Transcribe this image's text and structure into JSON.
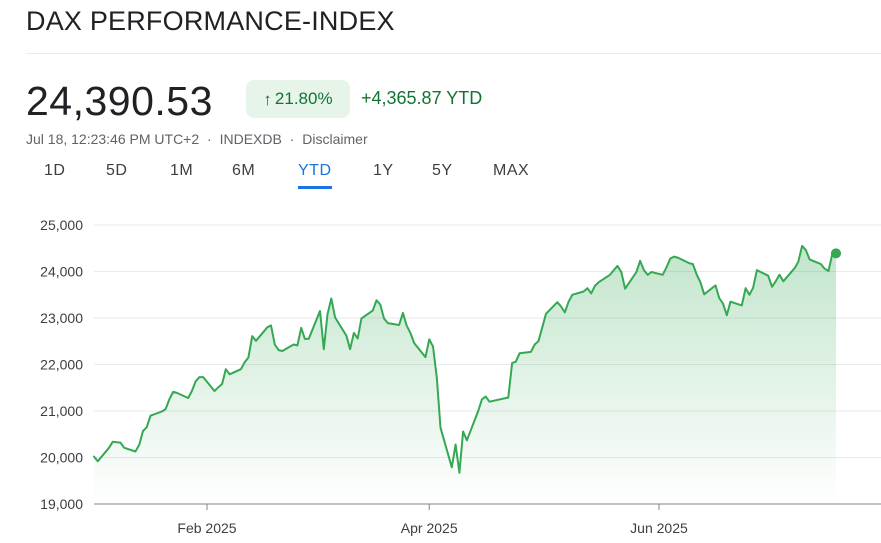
{
  "header": {
    "title": "DAX PERFORMANCE-INDEX",
    "price": "24,390.53",
    "change_pct": "21.80%",
    "change_abs": "+4,365.87 YTD",
    "timestamp": "Jul 18, 12:23:46 PM UTC+2",
    "exchange": "INDEXDB",
    "disclaimer": "Disclaimer",
    "separator": "·"
  },
  "tabs": [
    {
      "label": "1D",
      "active": false
    },
    {
      "label": "5D",
      "active": false
    },
    {
      "label": "1M",
      "active": false
    },
    {
      "label": "6M",
      "active": false
    },
    {
      "label": "YTD",
      "active": true
    },
    {
      "label": "1Y",
      "active": false
    },
    {
      "label": "5Y",
      "active": false
    },
    {
      "label": "MAX",
      "active": false
    }
  ],
  "colors": {
    "line": "#34a853",
    "positive_text": "#137333",
    "positive_bg": "#e6f4ea",
    "active_tab": "#1a73e8"
  },
  "chart_data": {
    "type": "area",
    "title": "",
    "xlabel": "",
    "ylabel": "",
    "ylim": [
      19000,
      25000
    ],
    "yticks": [
      19000,
      20000,
      21000,
      22000,
      23000,
      24000,
      25000
    ],
    "ytick_labels": [
      "19,000",
      "20,000",
      "21,000",
      "22,000",
      "23,000",
      "24,000",
      "25,000"
    ],
    "xtick_labels": [
      "Feb 2025",
      "Apr 2025",
      "Jun 2025"
    ],
    "xtick_dates": [
      "2025-02-01",
      "2025-04-01",
      "2025-06-01"
    ],
    "xlim": [
      "2025-01-02",
      "2025-07-18"
    ],
    "grid": true,
    "series": [
      {
        "points": [
          [
            "2025-01-02",
            20020
          ],
          [
            "2025-01-03",
            19920
          ],
          [
            "2025-01-06",
            20210
          ],
          [
            "2025-01-07",
            20340
          ],
          [
            "2025-01-08",
            20330
          ],
          [
            "2025-01-09",
            20320
          ],
          [
            "2025-01-10",
            20210
          ],
          [
            "2025-01-13",
            20130
          ],
          [
            "2025-01-14",
            20270
          ],
          [
            "2025-01-15",
            20570
          ],
          [
            "2025-01-16",
            20650
          ],
          [
            "2025-01-17",
            20900
          ],
          [
            "2025-01-20",
            20990
          ],
          [
            "2025-01-21",
            21040
          ],
          [
            "2025-01-22",
            21250
          ],
          [
            "2025-01-23",
            21410
          ],
          [
            "2025-01-24",
            21390
          ],
          [
            "2025-01-27",
            21280
          ],
          [
            "2025-01-28",
            21430
          ],
          [
            "2025-01-29",
            21640
          ],
          [
            "2025-01-30",
            21730
          ],
          [
            "2025-01-31",
            21730
          ],
          [
            "2025-02-03",
            21430
          ],
          [
            "2025-02-04",
            21510
          ],
          [
            "2025-02-05",
            21580
          ],
          [
            "2025-02-06",
            21900
          ],
          [
            "2025-02-07",
            21790
          ],
          [
            "2025-02-10",
            21900
          ],
          [
            "2025-02-11",
            22050
          ],
          [
            "2025-02-12",
            22150
          ],
          [
            "2025-02-13",
            22610
          ],
          [
            "2025-02-14",
            22510
          ],
          [
            "2025-02-17",
            22800
          ],
          [
            "2025-02-18",
            22840
          ],
          [
            "2025-02-19",
            22430
          ],
          [
            "2025-02-20",
            22310
          ],
          [
            "2025-02-21",
            22290
          ],
          [
            "2025-02-24",
            22430
          ],
          [
            "2025-02-25",
            22410
          ],
          [
            "2025-02-26",
            22790
          ],
          [
            "2025-02-27",
            22550
          ],
          [
            "2025-02-28",
            22550
          ],
          [
            "2025-03-03",
            23150
          ],
          [
            "2025-03-04",
            22330
          ],
          [
            "2025-03-05",
            23080
          ],
          [
            "2025-03-06",
            23420
          ],
          [
            "2025-03-07",
            23010
          ],
          [
            "2025-03-10",
            22620
          ],
          [
            "2025-03-11",
            22330
          ],
          [
            "2025-03-12",
            22680
          ],
          [
            "2025-03-13",
            22560
          ],
          [
            "2025-03-14",
            22990
          ],
          [
            "2025-03-17",
            23160
          ],
          [
            "2025-03-18",
            23380
          ],
          [
            "2025-03-19",
            23290
          ],
          [
            "2025-03-20",
            22990
          ],
          [
            "2025-03-21",
            22890
          ],
          [
            "2025-03-24",
            22850
          ],
          [
            "2025-03-25",
            23110
          ],
          [
            "2025-03-26",
            22840
          ],
          [
            "2025-03-27",
            22680
          ],
          [
            "2025-03-28",
            22460
          ],
          [
            "2025-03-31",
            22160
          ],
          [
            "2025-04-01",
            22540
          ],
          [
            "2025-04-02",
            22390
          ],
          [
            "2025-04-03",
            21720
          ],
          [
            "2025-04-04",
            20640
          ],
          [
            "2025-04-07",
            19790
          ],
          [
            "2025-04-08",
            20280
          ],
          [
            "2025-04-09",
            19670
          ],
          [
            "2025-04-10",
            20560
          ],
          [
            "2025-04-11",
            20370
          ],
          [
            "2025-04-14",
            21000
          ],
          [
            "2025-04-15",
            21250
          ],
          [
            "2025-04-16",
            21310
          ],
          [
            "2025-04-17",
            21200
          ],
          [
            "2025-04-22",
            21290
          ],
          [
            "2025-04-23",
            22030
          ],
          [
            "2025-04-24",
            22060
          ],
          [
            "2025-04-25",
            22240
          ],
          [
            "2025-04-28",
            22270
          ],
          [
            "2025-04-29",
            22430
          ],
          [
            "2025-04-30",
            22500
          ],
          [
            "2025-05-02",
            23090
          ],
          [
            "2025-05-05",
            23340
          ],
          [
            "2025-05-06",
            23250
          ],
          [
            "2025-05-07",
            23120
          ],
          [
            "2025-05-08",
            23350
          ],
          [
            "2025-05-09",
            23500
          ],
          [
            "2025-05-12",
            23570
          ],
          [
            "2025-05-13",
            23640
          ],
          [
            "2025-05-14",
            23530
          ],
          [
            "2025-05-15",
            23690
          ],
          [
            "2025-05-16",
            23770
          ],
          [
            "2025-05-19",
            23930
          ],
          [
            "2025-05-20",
            24030
          ],
          [
            "2025-05-21",
            24120
          ],
          [
            "2025-05-22",
            23990
          ],
          [
            "2025-05-23",
            23630
          ],
          [
            "2025-05-26",
            23990
          ],
          [
            "2025-05-27",
            24230
          ],
          [
            "2025-05-28",
            24030
          ],
          [
            "2025-05-29",
            23930
          ],
          [
            "2025-05-30",
            23990
          ],
          [
            "2025-06-02",
            23930
          ],
          [
            "2025-06-03",
            24090
          ],
          [
            "2025-06-04",
            24280
          ],
          [
            "2025-06-05",
            24320
          ],
          [
            "2025-06-06",
            24300
          ],
          [
            "2025-06-09",
            24180
          ],
          [
            "2025-06-10",
            24160
          ],
          [
            "2025-06-11",
            23940
          ],
          [
            "2025-06-12",
            23770
          ],
          [
            "2025-06-13",
            23510
          ],
          [
            "2025-06-16",
            23700
          ],
          [
            "2025-06-17",
            23430
          ],
          [
            "2025-06-18",
            23310
          ],
          [
            "2025-06-19",
            23060
          ],
          [
            "2025-06-20",
            23350
          ],
          [
            "2025-06-23",
            23270
          ],
          [
            "2025-06-24",
            23640
          ],
          [
            "2025-06-25",
            23500
          ],
          [
            "2025-06-26",
            23650
          ],
          [
            "2025-06-27",
            24030
          ],
          [
            "2025-06-30",
            23910
          ],
          [
            "2025-07-01",
            23670
          ],
          [
            "2025-07-02",
            23790
          ],
          [
            "2025-07-03",
            23930
          ],
          [
            "2025-07-04",
            23790
          ],
          [
            "2025-07-07",
            24070
          ],
          [
            "2025-07-08",
            24210
          ],
          [
            "2025-07-09",
            24550
          ],
          [
            "2025-07-10",
            24460
          ],
          [
            "2025-07-11",
            24260
          ],
          [
            "2025-07-14",
            24160
          ],
          [
            "2025-07-15",
            24060
          ],
          [
            "2025-07-16",
            24010
          ],
          [
            "2025-07-17",
            24370
          ],
          [
            "2025-07-18",
            24390.53
          ]
        ]
      }
    ]
  }
}
